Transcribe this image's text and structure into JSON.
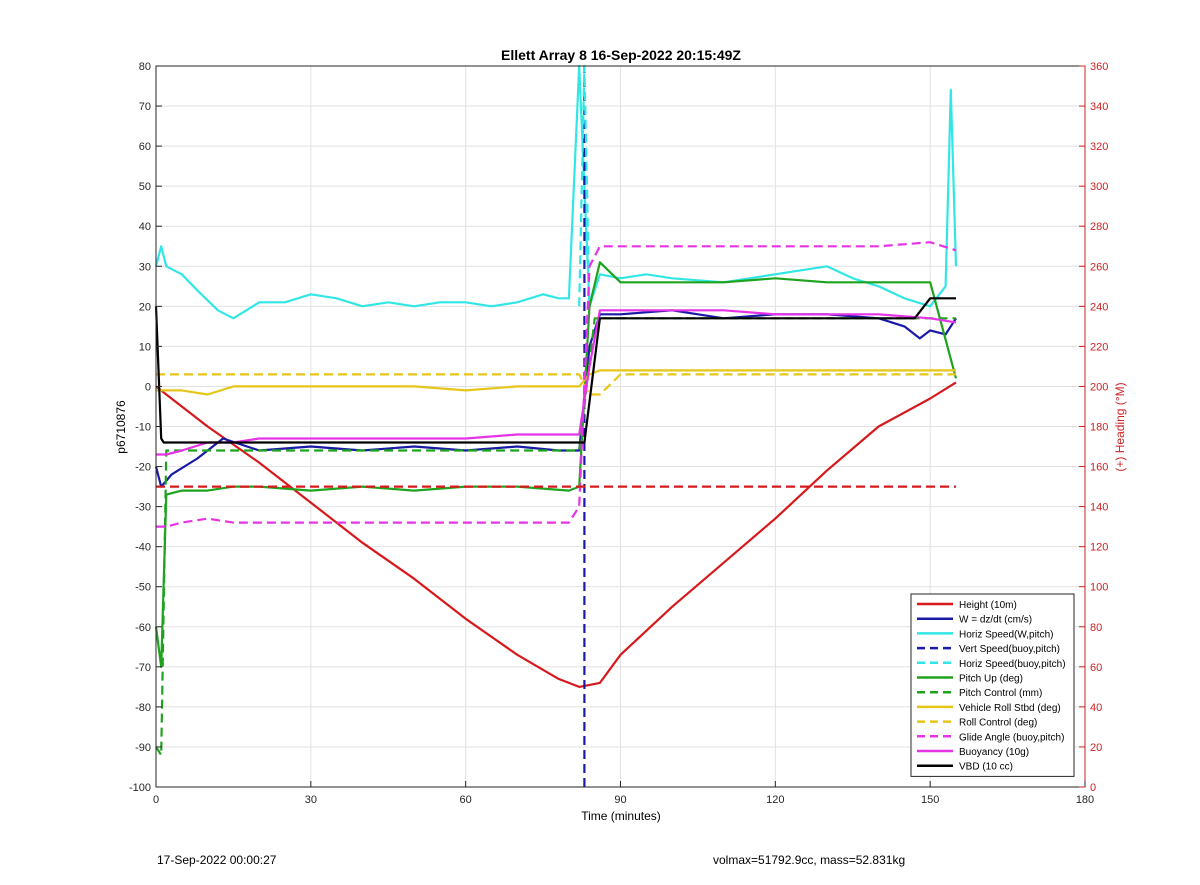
{
  "footer": {
    "date_left": "17-Sep-2022 00:00:27",
    "info_right": "volmax=51792.9cc, mass=52.831kg"
  },
  "chart_data": {
    "type": "line",
    "title": "Ellett Array 8 16-Sep-2022 20:15:49Z",
    "xlabel": "Time (minutes)",
    "ylabel": "p6710876",
    "y2label": "(+) Heading (°M)",
    "xlim": [
      0,
      180
    ],
    "ylim": [
      -100,
      80
    ],
    "y2lim": [
      0,
      360
    ],
    "xticks": [
      0,
      30,
      60,
      90,
      120,
      150,
      180
    ],
    "yticks": [
      -100,
      -90,
      -80,
      -70,
      -60,
      -50,
      -40,
      -30,
      -20,
      -10,
      0,
      10,
      20,
      30,
      40,
      50,
      60,
      70,
      80
    ],
    "y2ticks": [
      0,
      20,
      40,
      60,
      80,
      100,
      120,
      140,
      160,
      180,
      200,
      220,
      240,
      260,
      280,
      300,
      320,
      340,
      360
    ],
    "grid": true,
    "legend_position": "bottom-right",
    "colors": {
      "red": "#d7191c",
      "blue": "#1a1aa6",
      "cyan": "#33e6e6",
      "green": "#1fa31f",
      "yellow": "#e6c619",
      "magenta": "#e633e6",
      "black": "#000000",
      "axis2": "#cc2222"
    },
    "series": [
      {
        "name": "Height (10m)",
        "color": "red",
        "style": "solid",
        "x": [
          0,
          2,
          10,
          20,
          30,
          40,
          50,
          60,
          70,
          78,
          82,
          86,
          90,
          100,
          110,
          120,
          130,
          140,
          150,
          155
        ],
        "y": [
          0,
          -2,
          -10,
          -19,
          -29,
          -39,
          -48,
          -58,
          -67,
          -73,
          -75,
          -74,
          -67,
          -55,
          -44,
          -33,
          -21,
          -10,
          -3,
          1
        ]
      },
      {
        "name": "W = dz/dt (cm/s)",
        "color": "blue",
        "style": "solid",
        "x": [
          0,
          1,
          3,
          8,
          13,
          20,
          30,
          40,
          50,
          60,
          70,
          78,
          82,
          84,
          86,
          90,
          100,
          110,
          120,
          130,
          140,
          145,
          148,
          150,
          153,
          155
        ],
        "y": [
          -20,
          -25,
          -22,
          -18,
          -13,
          -16,
          -15,
          -16,
          -15,
          -16,
          -15,
          -16,
          -16,
          10,
          18,
          18,
          19,
          17,
          18,
          18,
          17,
          15,
          12,
          14,
          13,
          17
        ]
      },
      {
        "name": "Horiz Speed(W,pitch)",
        "color": "cyan",
        "style": "solid",
        "x": [
          0,
          1,
          2,
          5,
          8,
          12,
          15,
          20,
          25,
          30,
          35,
          40,
          45,
          50,
          55,
          60,
          65,
          70,
          75,
          78,
          80,
          82,
          84,
          86,
          90,
          95,
          100,
          110,
          120,
          130,
          135,
          140,
          145,
          150,
          153,
          154,
          155
        ],
        "y": [
          30,
          35,
          30,
          28,
          24,
          19,
          17,
          21,
          21,
          23,
          22,
          20,
          21,
          20,
          21,
          21,
          20,
          21,
          23,
          22,
          22,
          80,
          20,
          28,
          27,
          28,
          27,
          26,
          28,
          30,
          27,
          25,
          22,
          20,
          25,
          74,
          30
        ]
      },
      {
        "name": "Vert Speed(buoy,pitch)",
        "color": "blue",
        "style": "dashed",
        "x": [
          83,
          83,
          83
        ],
        "y": [
          -100,
          80,
          80
        ]
      },
      {
        "name": "Horiz Speed(buoy,pitch)",
        "color": "cyan",
        "style": "dashed",
        "x": [
          82,
          83,
          84
        ],
        "y": [
          20,
          80,
          20
        ]
      },
      {
        "name": "Pitch Up (deg)",
        "color": "green",
        "style": "solid",
        "x": [
          0,
          1,
          2,
          5,
          10,
          15,
          20,
          30,
          40,
          50,
          60,
          70,
          80,
          82,
          84,
          86,
          90,
          100,
          110,
          120,
          130,
          140,
          150,
          155
        ],
        "y": [
          -60,
          -70,
          -27,
          -26,
          -26,
          -25,
          -25,
          -26,
          -25,
          -26,
          -25,
          -25,
          -26,
          -25,
          20,
          31,
          26,
          26,
          26,
          27,
          26,
          26,
          26,
          2
        ]
      },
      {
        "name": "Pitch Control (mm)",
        "color": "green",
        "style": "dashed",
        "x": [
          0,
          1,
          2,
          5,
          10,
          15,
          20,
          30,
          40,
          50,
          60,
          70,
          80,
          82,
          85,
          90,
          100,
          110,
          120,
          130,
          140,
          150,
          155
        ],
        "y": [
          -90,
          -92,
          -16,
          -16,
          -16,
          -16,
          -16,
          -16,
          -16,
          -16,
          -16,
          -16,
          -16,
          -16,
          17,
          17,
          17,
          17,
          17,
          17,
          17,
          17,
          17
        ]
      },
      {
        "name": "Vehicle Roll Stbd (deg)",
        "color": "yellow",
        "style": "solid",
        "x": [
          0,
          5,
          10,
          15,
          20,
          30,
          40,
          50,
          60,
          70,
          80,
          82,
          84,
          86,
          90,
          100,
          110,
          120,
          130,
          140,
          150,
          155
        ],
        "y": [
          -1,
          -1,
          -2,
          0,
          0,
          0,
          0,
          0,
          -1,
          0,
          0,
          0,
          3,
          4,
          4,
          4,
          4,
          4,
          4,
          4,
          4,
          4
        ]
      },
      {
        "name": "Roll Control (deg)",
        "color": "yellow",
        "style": "dashed",
        "x": [
          0,
          5,
          10,
          15,
          20,
          30,
          40,
          50,
          60,
          70,
          80,
          82,
          84,
          86,
          90,
          100,
          110,
          120,
          130,
          140,
          150,
          155
        ],
        "y": [
          3,
          3,
          3,
          3,
          3,
          3,
          3,
          3,
          3,
          3,
          3,
          3,
          -2,
          -2,
          3,
          3,
          3,
          3,
          3,
          3,
          3,
          3
        ]
      },
      {
        "name": "Glide Angle (buoy,pitch)",
        "color": "magenta",
        "style": "dashed",
        "x": [
          0,
          2,
          5,
          10,
          15,
          20,
          30,
          40,
          50,
          60,
          70,
          80,
          82,
          84,
          86,
          90,
          100,
          110,
          120,
          130,
          140,
          150,
          155
        ],
        "y": [
          -35,
          -35,
          -34,
          -33,
          -34,
          -34,
          -34,
          -34,
          -34,
          -34,
          -34,
          -34,
          -30,
          30,
          35,
          35,
          35,
          35,
          35,
          35,
          35,
          36,
          34
        ]
      },
      {
        "name": "Buoyancy (10g)",
        "color": "magenta",
        "style": "solid",
        "x": [
          0,
          2,
          5,
          10,
          15,
          20,
          30,
          40,
          50,
          60,
          70,
          80,
          82,
          84,
          86,
          90,
          100,
          110,
          120,
          130,
          140,
          150,
          155
        ],
        "y": [
          -17,
          -17,
          -16,
          -14,
          -14,
          -13,
          -13,
          -13,
          -13,
          -13,
          -12,
          -12,
          -12,
          5,
          19,
          19,
          19,
          19,
          18,
          18,
          18,
          17,
          16
        ]
      },
      {
        "name": "VBD (10 cc)",
        "color": "black",
        "style": "solid",
        "x": [
          0,
          1,
          1.5,
          50,
          82,
          83,
          86,
          100,
          140,
          147,
          150,
          155
        ],
        "y": [
          20,
          -13,
          -14,
          -14,
          -14,
          -14,
          17,
          17,
          17,
          17,
          22,
          22
        ]
      }
    ],
    "heading_series": {
      "name": "Heading",
      "axis": "right",
      "color": "red",
      "style": "dashed",
      "x": [
        0,
        80,
        82,
        84,
        86,
        155
      ],
      "y": [
        150,
        150,
        150,
        150,
        150,
        150
      ]
    }
  }
}
